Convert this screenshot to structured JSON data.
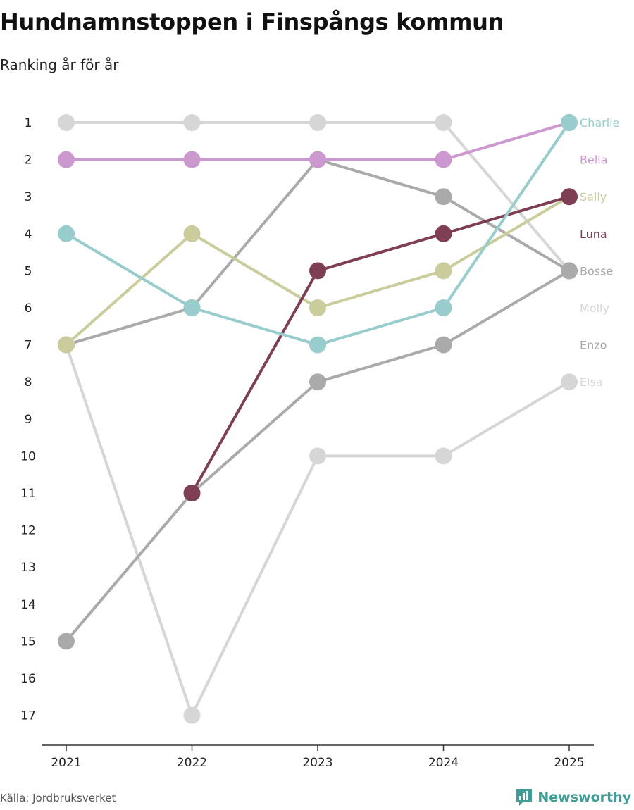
{
  "header": {
    "title": "Hundnamnstoppen i Finspångs kommun",
    "subtitle": "Ranking år för år"
  },
  "footer": {
    "source": "Källa: Jordbruksverket",
    "brand": "Newsworthy"
  },
  "colors": {
    "axis": "#333333",
    "tick_text": "#222222"
  },
  "chart_data": {
    "type": "line",
    "title": "Hundnamnstoppen i Finspångs kommun",
    "subtitle": "Ranking år för år",
    "x": [
      "2021",
      "2022",
      "2023",
      "2024",
      "2025"
    ],
    "y_ticks": [
      1,
      2,
      3,
      4,
      5,
      6,
      7,
      8,
      9,
      10,
      11,
      12,
      13,
      14,
      15,
      16,
      17
    ],
    "ylim": [
      1,
      17
    ],
    "y_reversed": true,
    "xlabel": "",
    "ylabel": "",
    "legend": "direct labels at right end of each line",
    "series": [
      {
        "name": "Elsa",
        "color": "#d6d6d6",
        "values": [
          7,
          17,
          10,
          10,
          8
        ]
      },
      {
        "name": "Enzo",
        "color": "#aaaaaa",
        "values": [
          15,
          11,
          8,
          7,
          5
        ]
      },
      {
        "name": "Molly",
        "color": "#d6d6d6",
        "values": [
          1,
          1,
          1,
          1,
          5
        ]
      },
      {
        "name": "Bosse",
        "color": "#aaaaaa",
        "values": [
          7,
          6,
          2,
          3,
          5
        ]
      },
      {
        "name": "Sally",
        "color": "#cbcc9b",
        "values": [
          7,
          4,
          6,
          5,
          3
        ]
      },
      {
        "name": "Luna",
        "color": "#7e3f55",
        "values": [
          null,
          11,
          5,
          4,
          3
        ]
      },
      {
        "name": "Bella",
        "color": "#cb98cf",
        "values": [
          2,
          2,
          2,
          2,
          1
        ]
      },
      {
        "name": "Charlie",
        "color": "#98cccd",
        "values": [
          4,
          6,
          7,
          6,
          1
        ]
      }
    ],
    "label_positions_rank": {
      "Charlie": 1,
      "Bella": 2,
      "Sally": 3,
      "Luna": 4,
      "Bosse": 5,
      "Molly": 6,
      "Enzo": 7,
      "Elsa": 8
    }
  }
}
